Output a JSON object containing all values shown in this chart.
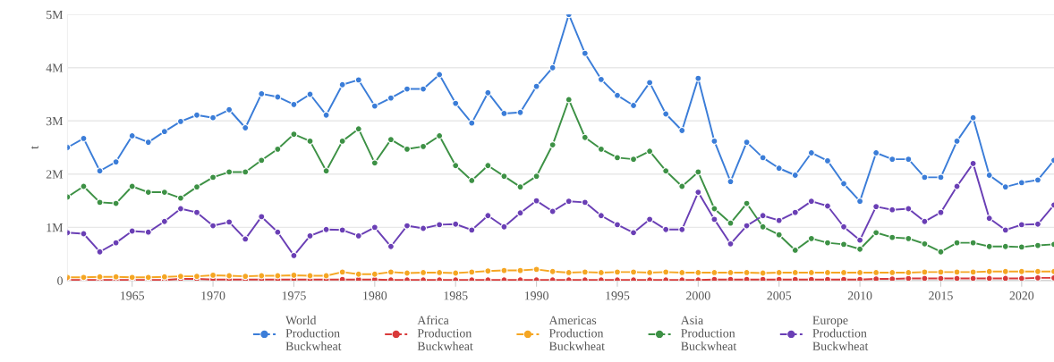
{
  "chart_data": {
    "type": "line",
    "ylabel": "t",
    "x": [
      1961,
      1962,
      1963,
      1964,
      1965,
      1966,
      1967,
      1968,
      1969,
      1970,
      1971,
      1972,
      1973,
      1974,
      1975,
      1976,
      1977,
      1978,
      1979,
      1980,
      1981,
      1982,
      1983,
      1984,
      1985,
      1986,
      1987,
      1988,
      1989,
      1990,
      1991,
      1992,
      1993,
      1994,
      1995,
      1996,
      1997,
      1998,
      1999,
      2000,
      2001,
      2002,
      2003,
      2004,
      2005,
      2006,
      2007,
      2008,
      2009,
      2010,
      2011,
      2012,
      2013,
      2014,
      2015,
      2016,
      2017,
      2018,
      2019,
      2020,
      2021,
      2022
    ],
    "series": [
      {
        "name": "World Production Buckwheat",
        "color": "#3b7dd8",
        "values": [
          2500000,
          2670000,
          2060000,
          2230000,
          2720000,
          2600000,
          2800000,
          2990000,
          3110000,
          3060000,
          3210000,
          2870000,
          3510000,
          3450000,
          3310000,
          3500000,
          3110000,
          3680000,
          3770000,
          3280000,
          3430000,
          3600000,
          3600000,
          3870000,
          3330000,
          2960000,
          3530000,
          3140000,
          3160000,
          3650000,
          4000000,
          5000000,
          4270000,
          3780000,
          3480000,
          3290000,
          3720000,
          3130000,
          2820000,
          3800000,
          2620000,
          1860000,
          2600000,
          2310000,
          2110000,
          1980000,
          2400000,
          2250000,
          1820000,
          1490000,
          2400000,
          2280000,
          2280000,
          1940000,
          1940000,
          2620000,
          3060000,
          1980000,
          1760000,
          1840000,
          1890000,
          2260000
        ]
      },
      {
        "name": "Africa Production Buckwheat",
        "color": "#d93a3a",
        "values": [
          10000,
          10000,
          10000,
          10000,
          10000,
          10000,
          10000,
          30000,
          30000,
          20000,
          20000,
          20000,
          20000,
          20000,
          20000,
          20000,
          20000,
          20000,
          20000,
          20000,
          10000,
          10000,
          10000,
          10000,
          10000,
          10000,
          10000,
          10000,
          10000,
          10000,
          10000,
          10000,
          10000,
          10000,
          10000,
          10000,
          10000,
          10000,
          10000,
          10000,
          20000,
          20000,
          20000,
          20000,
          20000,
          20000,
          20000,
          20000,
          20000,
          20000,
          30000,
          30000,
          40000,
          40000,
          40000,
          40000,
          40000,
          40000,
          40000,
          40000,
          50000,
          50000
        ]
      },
      {
        "name": "Americas Production Buckwheat",
        "color": "#f5a623",
        "values": [
          60000,
          60000,
          70000,
          70000,
          60000,
          60000,
          70000,
          80000,
          80000,
          100000,
          90000,
          80000,
          90000,
          90000,
          100000,
          90000,
          90000,
          160000,
          120000,
          120000,
          160000,
          140000,
          150000,
          150000,
          140000,
          160000,
          180000,
          190000,
          190000,
          210000,
          170000,
          150000,
          160000,
          150000,
          160000,
          160000,
          150000,
          160000,
          150000,
          150000,
          150000,
          150000,
          150000,
          140000,
          150000,
          150000,
          150000,
          150000,
          150000,
          150000,
          150000,
          150000,
          150000,
          160000,
          160000,
          160000,
          160000,
          170000,
          170000,
          170000,
          170000,
          170000
        ]
      },
      {
        "name": "Asia Production Buckwheat",
        "color": "#3d9145",
        "values": [
          1570000,
          1770000,
          1470000,
          1450000,
          1770000,
          1660000,
          1660000,
          1550000,
          1760000,
          1940000,
          2040000,
          2040000,
          2260000,
          2470000,
          2750000,
          2620000,
          2060000,
          2620000,
          2850000,
          2210000,
          2650000,
          2470000,
          2520000,
          2720000,
          2160000,
          1880000,
          2160000,
          1960000,
          1760000,
          1960000,
          2550000,
          3400000,
          2690000,
          2470000,
          2310000,
          2280000,
          2430000,
          2060000,
          1770000,
          2040000,
          1350000,
          1080000,
          1450000,
          1010000,
          860000,
          570000,
          790000,
          710000,
          680000,
          590000,
          900000,
          810000,
          790000,
          690000,
          540000,
          710000,
          710000,
          640000,
          640000,
          630000,
          660000,
          680000
        ]
      },
      {
        "name": "Europe Production Buckwheat",
        "color": "#6a3fb5",
        "values": [
          900000,
          880000,
          540000,
          710000,
          930000,
          910000,
          1110000,
          1350000,
          1280000,
          1030000,
          1100000,
          780000,
          1200000,
          910000,
          470000,
          840000,
          960000,
          950000,
          840000,
          1000000,
          640000,
          1030000,
          980000,
          1050000,
          1060000,
          950000,
          1220000,
          1010000,
          1270000,
          1500000,
          1300000,
          1490000,
          1470000,
          1220000,
          1050000,
          900000,
          1150000,
          960000,
          960000,
          1660000,
          1150000,
          690000,
          1030000,
          1220000,
          1130000,
          1280000,
          1490000,
          1400000,
          1010000,
          760000,
          1390000,
          1330000,
          1350000,
          1110000,
          1280000,
          1770000,
          2200000,
          1170000,
          950000,
          1050000,
          1060000,
          1420000
        ]
      }
    ],
    "xlim": [
      1961,
      2022
    ],
    "xticks": [
      1965,
      1970,
      1975,
      1980,
      1985,
      1990,
      1995,
      2000,
      2005,
      2010,
      2015,
      2020
    ],
    "ylim": [
      0,
      5000000
    ],
    "yticks": [
      0,
      {
        "value": 1000000,
        "label": "1M"
      },
      {
        "value": 2000000,
        "label": "2M"
      },
      {
        "value": 3000000,
        "label": "3M"
      },
      {
        "value": 4000000,
        "label": "4M"
      },
      {
        "value": 5000000,
        "label": "5M"
      }
    ],
    "grid": "y",
    "legend": "bottom",
    "marker": "circle",
    "line_style": "solid"
  }
}
